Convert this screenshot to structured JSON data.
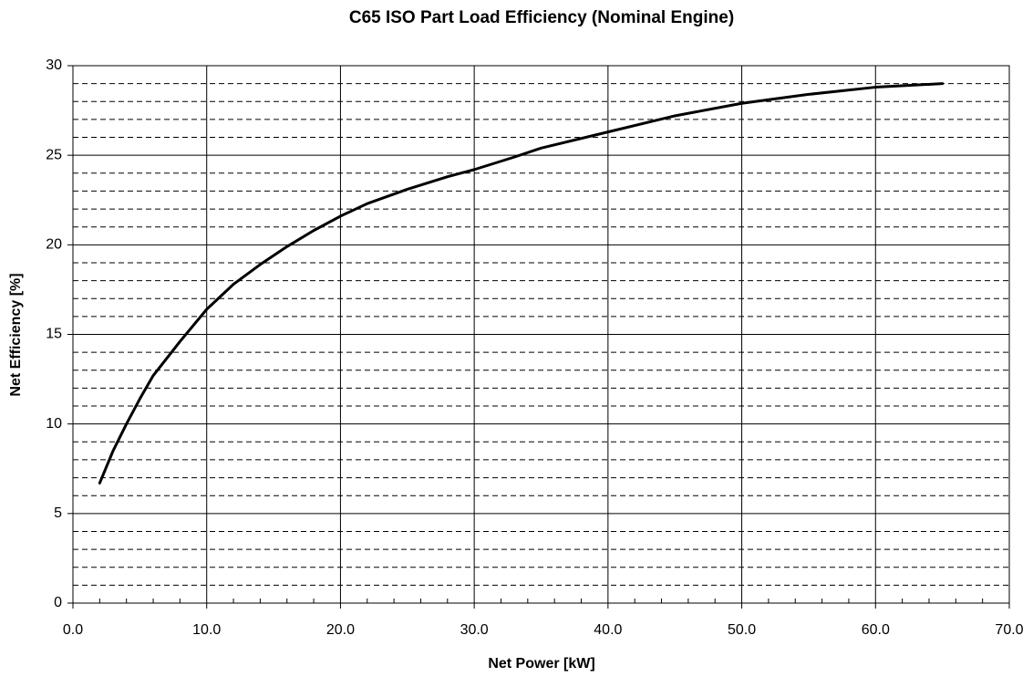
{
  "chart_data": {
    "type": "line",
    "title": "C65 ISO Part Load Efficiency (Nominal Engine)",
    "x_label": "Net Power [kW]",
    "y_label": "Net Efficiency [%]",
    "x": [
      2,
      3,
      4,
      5,
      6,
      8,
      10,
      12,
      14,
      16,
      18,
      20,
      22,
      25,
      28,
      30,
      33,
      35,
      40,
      45,
      50,
      55,
      60,
      65
    ],
    "series": [
      {
        "name": "Net Efficiency",
        "color": "#000000",
        "values": [
          6.7,
          8.5,
          10,
          11.4,
          12.7,
          14.6,
          16.4,
          17.8,
          18.9,
          19.9,
          20.8,
          21.6,
          22.3,
          23.1,
          23.8,
          24.2,
          24.9,
          25.4,
          26.3,
          27.2,
          27.9,
          28.4,
          28.8,
          29.0
        ]
      }
    ],
    "xlim": [
      0,
      70
    ],
    "ylim": [
      0,
      30
    ],
    "xticks": [
      {
        "value": 0,
        "label": "0.0"
      },
      {
        "value": 10,
        "label": "10.0"
      },
      {
        "value": 20,
        "label": "20.0"
      },
      {
        "value": 30,
        "label": "30.0"
      },
      {
        "value": 40,
        "label": "40.0"
      },
      {
        "value": 50,
        "label": "50.0"
      },
      {
        "value": 60,
        "label": "60.0"
      },
      {
        "value": 70,
        "label": "70.0"
      }
    ],
    "yticks": [
      0,
      5,
      10,
      15,
      20,
      25,
      30
    ],
    "xminorticks": [
      2,
      4,
      6,
      8,
      12,
      14,
      16,
      18,
      22,
      24,
      26,
      28,
      32,
      34,
      36,
      38,
      42,
      44,
      46,
      48,
      52,
      54,
      56,
      58,
      62,
      64,
      66,
      68
    ],
    "yminorticks": [
      1,
      2,
      3,
      4,
      6,
      7,
      8,
      9,
      11,
      12,
      13,
      14,
      16,
      17,
      18,
      19,
      21,
      22,
      23,
      24,
      26,
      27,
      28,
      29
    ],
    "grid": true,
    "legend": false
  }
}
